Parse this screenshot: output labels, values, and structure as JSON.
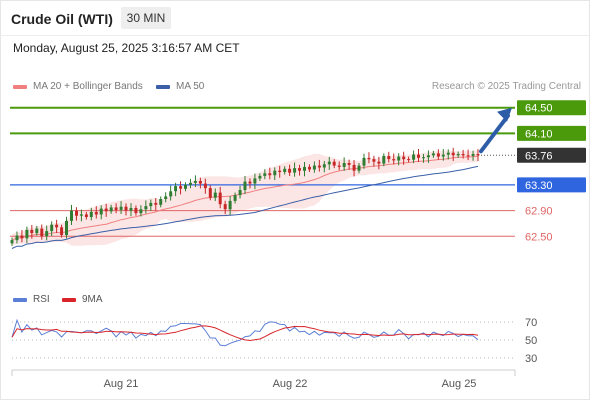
{
  "header": {
    "instrument": "Crude Oil (WTI)",
    "interval": "30 MIN",
    "datetime": "Monday, August 25, 2025 3:16:57 AM CET"
  },
  "legend": {
    "ma20_label": "MA 20 + Bollinger Bands",
    "ma50_label": "MA 50",
    "credit": "Research © 2025 Trading Central"
  },
  "rsi_legend": {
    "rsi_label": "RSI",
    "ma_label": "9MA"
  },
  "colors": {
    "ma20": "#f08080",
    "ma50": "#3a5fa8",
    "bollinger_fill": "#fbe1e1",
    "candle_up": "#2f7d32",
    "candle_down": "#c62828",
    "target": "#4a9a0c",
    "resistance_blue": "#2f66e0",
    "support_red": "#e06666",
    "current": "#333333",
    "arrow": "#2e5da8",
    "rsi": "#5b7fd6",
    "rsi_ma": "#d9252a"
  },
  "chart_data": [
    {
      "type": "candlestick",
      "title": "Crude Oil (WTI)",
      "interval": "30 MIN",
      "ylim": [
        62.1,
        64.62
      ],
      "x_ticks": [
        "Aug 21",
        "Aug 22",
        "Aug 25"
      ],
      "closes": [
        62.44,
        62.51,
        62.47,
        62.6,
        62.55,
        62.62,
        62.5,
        62.58,
        62.68,
        62.64,
        62.52,
        62.74,
        62.9,
        62.82,
        62.84,
        62.8,
        62.88,
        62.84,
        62.93,
        62.89,
        62.95,
        62.91,
        62.96,
        62.9,
        62.94,
        62.86,
        62.92,
        62.97,
        63.02,
        62.99,
        63.08,
        63.12,
        63.2,
        63.28,
        63.24,
        63.3,
        63.33,
        63.36,
        63.32,
        63.25,
        63.1,
        63.18,
        63.0,
        62.92,
        63.05,
        63.14,
        63.22,
        63.35,
        63.32,
        63.4,
        63.44,
        63.48,
        63.45,
        63.52,
        63.5,
        63.55,
        63.49,
        63.56,
        63.52,
        63.58,
        63.54,
        63.6,
        63.57,
        63.62,
        63.66,
        63.6,
        63.58,
        63.64,
        63.61,
        63.52,
        63.6,
        63.72,
        63.7,
        63.66,
        63.63,
        63.75,
        63.7,
        63.68,
        63.74,
        63.7,
        63.69,
        63.77,
        63.72,
        63.73,
        63.76,
        63.79,
        63.74,
        63.77,
        63.8,
        63.76,
        63.78,
        63.76,
        63.75,
        63.78,
        63.76
      ],
      "levels": [
        {
          "label": "64.50",
          "value": 64.5,
          "kind": "target"
        },
        {
          "label": "64.10",
          "value": 64.1,
          "kind": "target"
        },
        {
          "label": "63.76",
          "value": 63.76,
          "kind": "current"
        },
        {
          "label": "63.30",
          "value": 63.3,
          "kind": "pivot"
        },
        {
          "label": "62.90",
          "value": 62.9,
          "kind": "support"
        },
        {
          "label": "62.50",
          "value": 62.5,
          "kind": "support"
        }
      ],
      "indicators": [
        "MA 20 + Bollinger Bands",
        "MA 50"
      ]
    },
    {
      "type": "line",
      "title": "RSI",
      "series": [
        {
          "name": "RSI"
        },
        {
          "name": "9MA"
        }
      ],
      "ylim": [
        25,
        75
      ],
      "y_ticks": [
        70,
        50,
        30
      ]
    }
  ]
}
